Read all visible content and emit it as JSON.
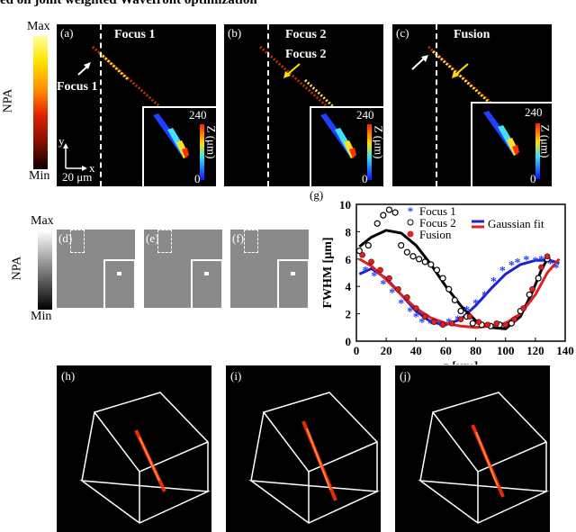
{
  "header": {
    "title": "ed on joint weighted Wavefront optimization"
  },
  "colorbar_top": {
    "max": "Max",
    "min": "Min",
    "label": "NPA"
  },
  "colorbar_bottom": {
    "max": "Max",
    "min": "Min",
    "label": "NPA"
  },
  "panels_top": [
    {
      "id": "(a)",
      "title": "Focus 1",
      "arrow_label": "Focus 1"
    },
    {
      "id": "(b)",
      "title": "Focus 2",
      "arrow_label": "Focus 2"
    },
    {
      "id": "(c)",
      "title": "Fusion"
    }
  ],
  "inset_axis": {
    "top": "240",
    "bottom": "0",
    "label": "Z (μm)"
  },
  "axes_indicator": {
    "y": "y",
    "x": "x",
    "scale": "20 μm"
  },
  "panels_mid": [
    {
      "id": "(d)"
    },
    {
      "id": "(e)"
    },
    {
      "id": "(f)"
    }
  ],
  "panels_bottom": [
    {
      "id": "(h)"
    },
    {
      "id": "(i)"
    },
    {
      "id": "(j)"
    }
  ],
  "plot": {
    "id": "(g)",
    "legend": {
      "focus1": "Focus 1",
      "focus2": "Focus 2",
      "fusion": "Fusion",
      "fit": "Gaussian fit"
    }
  },
  "chart_data": {
    "type": "scatter",
    "xlabel": "z [μm]",
    "ylabel": "FWHM [μm]",
    "xlim": [
      0,
      140
    ],
    "ylim": [
      0,
      10
    ],
    "x_ticks": [
      0,
      20,
      40,
      60,
      80,
      100,
      120,
      140
    ],
    "y_ticks": [
      0,
      2,
      4,
      6,
      8,
      10
    ],
    "series": [
      {
        "name": "Focus 1",
        "marker": "asterisk",
        "color": "#1f3fff",
        "points": [
          [
            6,
            5.2
          ],
          [
            12,
            4.8
          ],
          [
            18,
            4.2
          ],
          [
            24,
            3.6
          ],
          [
            30,
            2.8
          ],
          [
            36,
            2.2
          ],
          [
            40,
            1.8
          ],
          [
            44,
            1.4
          ],
          [
            50,
            1.3
          ],
          [
            56,
            1.2
          ],
          [
            62,
            1.4
          ],
          [
            68,
            1.6
          ],
          [
            74,
            2.3
          ],
          [
            80,
            2.8
          ],
          [
            86,
            3.4
          ],
          [
            92,
            4.4
          ],
          [
            98,
            5.2
          ],
          [
            104,
            5.6
          ],
          [
            108,
            5.8
          ],
          [
            114,
            6.0
          ],
          [
            120,
            5.9
          ],
          [
            124,
            6.0
          ],
          [
            130,
            5.7
          ],
          [
            134,
            5.4
          ]
        ]
      },
      {
        "name": "Focus 2",
        "marker": "open-circle",
        "color": "#000000",
        "points": [
          [
            2,
            6.6
          ],
          [
            8,
            7.0
          ],
          [
            14,
            8.6
          ],
          [
            18,
            9.2
          ],
          [
            22,
            9.6
          ],
          [
            26,
            9.4
          ],
          [
            30,
            7.0
          ],
          [
            34,
            6.5
          ],
          [
            38,
            6.2
          ],
          [
            42,
            6.0
          ],
          [
            46,
            5.8
          ],
          [
            50,
            5.6
          ],
          [
            54,
            5.2
          ],
          [
            58,
            4.6
          ],
          [
            62,
            3.8
          ],
          [
            66,
            3.0
          ],
          [
            70,
            2.2
          ],
          [
            74,
            1.8
          ],
          [
            78,
            1.3
          ],
          [
            84,
            1.2
          ],
          [
            90,
            1.1
          ],
          [
            96,
            1.2
          ],
          [
            104,
            1.3
          ],
          [
            110,
            2.2
          ],
          [
            116,
            3.4
          ],
          [
            122,
            4.6
          ],
          [
            128,
            6.0
          ]
        ]
      },
      {
        "name": "Fusion",
        "marker": "filled-circle",
        "color": "#e02020",
        "points": [
          [
            4,
            6.3
          ],
          [
            10,
            5.8
          ],
          [
            16,
            5.2
          ],
          [
            22,
            4.6
          ],
          [
            28,
            3.8
          ],
          [
            34,
            3.2
          ],
          [
            40,
            2.4
          ],
          [
            46,
            1.8
          ],
          [
            52,
            1.4
          ],
          [
            58,
            1.2
          ],
          [
            64,
            1.3
          ],
          [
            70,
            1.6
          ],
          [
            76,
            1.8
          ],
          [
            82,
            1.4
          ],
          [
            88,
            1.2
          ],
          [
            94,
            1.3
          ],
          [
            100,
            1.2
          ],
          [
            106,
            1.6
          ],
          [
            112,
            2.4
          ],
          [
            118,
            3.8
          ],
          [
            124,
            5.4
          ],
          [
            128,
            6.2
          ]
        ]
      }
    ],
    "fits": [
      {
        "name": "Focus 1 fit",
        "color": "#2020d0",
        "points": [
          [
            2,
            4.9
          ],
          [
            10,
            5.3
          ],
          [
            20,
            4.6
          ],
          [
            30,
            3.4
          ],
          [
            40,
            2.2
          ],
          [
            50,
            1.4
          ],
          [
            60,
            1.2
          ],
          [
            70,
            1.6
          ],
          [
            80,
            2.6
          ],
          [
            90,
            3.8
          ],
          [
            100,
            4.9
          ],
          [
            110,
            5.6
          ],
          [
            120,
            5.9
          ],
          [
            130,
            5.9
          ],
          [
            136,
            5.7
          ]
        ]
      },
      {
        "name": "Focus 2 fit",
        "color": "#000000",
        "points": [
          [
            2,
            6.9
          ],
          [
            10,
            7.6
          ],
          [
            20,
            8.1
          ],
          [
            30,
            7.9
          ],
          [
            40,
            7.0
          ],
          [
            50,
            5.6
          ],
          [
            60,
            4.0
          ],
          [
            70,
            2.6
          ],
          [
            80,
            1.5
          ],
          [
            90,
            1.0
          ],
          [
            100,
            0.9
          ],
          [
            110,
            1.8
          ],
          [
            118,
            3.6
          ],
          [
            124,
            5.2
          ],
          [
            128,
            6.0
          ]
        ]
      },
      {
        "name": "Fusion fit",
        "color": "#e02020",
        "points": [
          [
            2,
            6.0
          ],
          [
            10,
            5.5
          ],
          [
            20,
            4.5
          ],
          [
            30,
            3.4
          ],
          [
            40,
            2.4
          ],
          [
            50,
            1.7
          ],
          [
            60,
            1.3
          ],
          [
            70,
            1.1
          ],
          [
            80,
            1.0
          ],
          [
            90,
            1.1
          ],
          [
            100,
            1.3
          ],
          [
            110,
            2.0
          ],
          [
            120,
            3.4
          ],
          [
            128,
            5.0
          ],
          [
            136,
            6.0
          ]
        ]
      }
    ]
  }
}
